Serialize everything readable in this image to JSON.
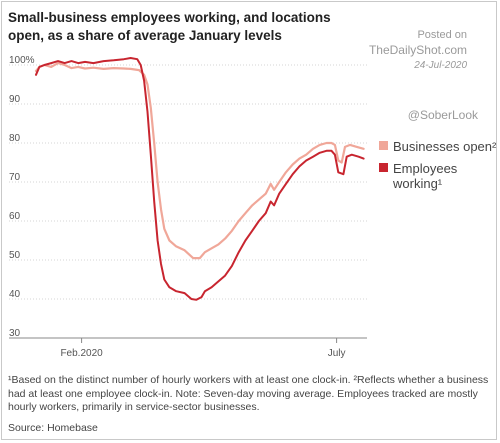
{
  "header": {
    "title": "Small-business employees working, and locations open, as a share of average January levels",
    "posted_label": "Posted on",
    "site": "TheDailyShot.com",
    "date": "24-Jul-2020",
    "handle": "@SoberLook"
  },
  "footer": {
    "note": "¹Based on the distinct number of hourly workers with at least one clock-in. ²Reflects whether a business had at least one employee clock-in. Note: Seven-day moving average. Employees tracked are mostly hourly workers, primarily in service-sector businesses.",
    "source": "Source: Homebase"
  },
  "chart_data": {
    "type": "line",
    "title": "Small-business employees working, and locations open, as a share of average January levels",
    "ylim": [
      30,
      100
    ],
    "yticks": [
      100,
      90,
      80,
      70,
      60,
      50,
      40,
      30
    ],
    "ytick_labels": [
      "100%",
      "90",
      "80",
      "70",
      "60",
      "50",
      "40",
      "30"
    ],
    "xlim": [
      "2020-01-05",
      "2020-07-19"
    ],
    "xticks": [
      {
        "date": "2020-02-01",
        "label": "Feb.2020"
      },
      {
        "date": "2020-07-01",
        "label": "July"
      }
    ],
    "grid": "horizontal",
    "legend_position": "right",
    "series": [
      {
        "name": "Businesses open²",
        "color": "#f0a799",
        "points": [
          [
            "2020-01-05",
            98.5
          ],
          [
            "2020-01-07",
            99.5
          ],
          [
            "2020-01-10",
            100
          ],
          [
            "2020-01-14",
            99.5
          ],
          [
            "2020-01-18",
            100.5
          ],
          [
            "2020-01-22",
            100
          ],
          [
            "2020-01-26",
            99.2
          ],
          [
            "2020-01-30",
            99.5
          ],
          [
            "2020-02-03",
            99.1
          ],
          [
            "2020-02-08",
            99.3
          ],
          [
            "2020-02-14",
            99
          ],
          [
            "2020-02-20",
            99.2
          ],
          [
            "2020-02-26",
            99.1
          ],
          [
            "2020-03-01",
            99
          ],
          [
            "2020-03-06",
            98.7
          ],
          [
            "2020-03-09",
            97.5
          ],
          [
            "2020-03-11",
            95
          ],
          [
            "2020-03-13",
            89
          ],
          [
            "2020-03-15",
            80
          ],
          [
            "2020-03-17",
            70
          ],
          [
            "2020-03-19",
            63
          ],
          [
            "2020-03-21",
            58
          ],
          [
            "2020-03-24",
            55
          ],
          [
            "2020-03-28",
            53.5
          ],
          [
            "2020-04-02",
            52.5
          ],
          [
            "2020-04-07",
            50.5
          ],
          [
            "2020-04-11",
            50.5
          ],
          [
            "2020-04-14",
            52
          ],
          [
            "2020-04-18",
            53
          ],
          [
            "2020-04-22",
            54
          ],
          [
            "2020-04-26",
            55.5
          ],
          [
            "2020-04-30",
            57.5
          ],
          [
            "2020-05-04",
            60
          ],
          [
            "2020-05-08",
            62
          ],
          [
            "2020-05-12",
            64
          ],
          [
            "2020-05-16",
            65.5
          ],
          [
            "2020-05-20",
            67
          ],
          [
            "2020-05-23",
            69.5
          ],
          [
            "2020-05-25",
            68
          ],
          [
            "2020-05-28",
            70
          ],
          [
            "2020-06-01",
            72.5
          ],
          [
            "2020-06-05",
            74.5
          ],
          [
            "2020-06-09",
            76
          ],
          [
            "2020-06-13",
            77
          ],
          [
            "2020-06-17",
            78.5
          ],
          [
            "2020-06-21",
            79.5
          ],
          [
            "2020-06-25",
            80
          ],
          [
            "2020-06-28",
            80
          ],
          [
            "2020-06-30",
            79.5
          ],
          [
            "2020-07-02",
            75.5
          ],
          [
            "2020-07-04",
            75
          ],
          [
            "2020-07-06",
            79
          ],
          [
            "2020-07-09",
            79.5
          ],
          [
            "2020-07-13",
            79
          ],
          [
            "2020-07-17",
            78.5
          ]
        ]
      },
      {
        "name": "Employees working¹",
        "color": "#c8252f",
        "points": [
          [
            "2020-01-05",
            97.5
          ],
          [
            "2020-01-07",
            99.5
          ],
          [
            "2020-01-10",
            100
          ],
          [
            "2020-01-14",
            100.5
          ],
          [
            "2020-01-18",
            101
          ],
          [
            "2020-01-22",
            100.5
          ],
          [
            "2020-01-26",
            101
          ],
          [
            "2020-01-30",
            100.5
          ],
          [
            "2020-02-03",
            100.8
          ],
          [
            "2020-02-08",
            100.5
          ],
          [
            "2020-02-14",
            101
          ],
          [
            "2020-02-20",
            101.2
          ],
          [
            "2020-02-26",
            101.5
          ],
          [
            "2020-03-01",
            101.8
          ],
          [
            "2020-03-05",
            101.5
          ],
          [
            "2020-03-07",
            100
          ],
          [
            "2020-03-09",
            96
          ],
          [
            "2020-03-11",
            88
          ],
          [
            "2020-03-13",
            77
          ],
          [
            "2020-03-15",
            65
          ],
          [
            "2020-03-17",
            55
          ],
          [
            "2020-03-19",
            49
          ],
          [
            "2020-03-21",
            45
          ],
          [
            "2020-03-24",
            43
          ],
          [
            "2020-03-28",
            42
          ],
          [
            "2020-04-02",
            41.5
          ],
          [
            "2020-04-06",
            40
          ],
          [
            "2020-04-09",
            39.8
          ],
          [
            "2020-04-12",
            40.5
          ],
          [
            "2020-04-14",
            42
          ],
          [
            "2020-04-18",
            43
          ],
          [
            "2020-04-22",
            44.5
          ],
          [
            "2020-04-26",
            46
          ],
          [
            "2020-04-30",
            48.5
          ],
          [
            "2020-05-04",
            52
          ],
          [
            "2020-05-08",
            55
          ],
          [
            "2020-05-12",
            57.5
          ],
          [
            "2020-05-16",
            60
          ],
          [
            "2020-05-20",
            62
          ],
          [
            "2020-05-23",
            65
          ],
          [
            "2020-05-25",
            64
          ],
          [
            "2020-05-28",
            67
          ],
          [
            "2020-06-01",
            69.5
          ],
          [
            "2020-06-05",
            72
          ],
          [
            "2020-06-09",
            74
          ],
          [
            "2020-06-13",
            75.5
          ],
          [
            "2020-06-17",
            76.5
          ],
          [
            "2020-06-21",
            77.5
          ],
          [
            "2020-06-25",
            78
          ],
          [
            "2020-06-28",
            78
          ],
          [
            "2020-06-30",
            77
          ],
          [
            "2020-07-02",
            72.5
          ],
          [
            "2020-07-05",
            72
          ],
          [
            "2020-07-07",
            76.5
          ],
          [
            "2020-07-10",
            77
          ],
          [
            "2020-07-14",
            76.5
          ],
          [
            "2020-07-17",
            76
          ]
        ]
      }
    ]
  }
}
